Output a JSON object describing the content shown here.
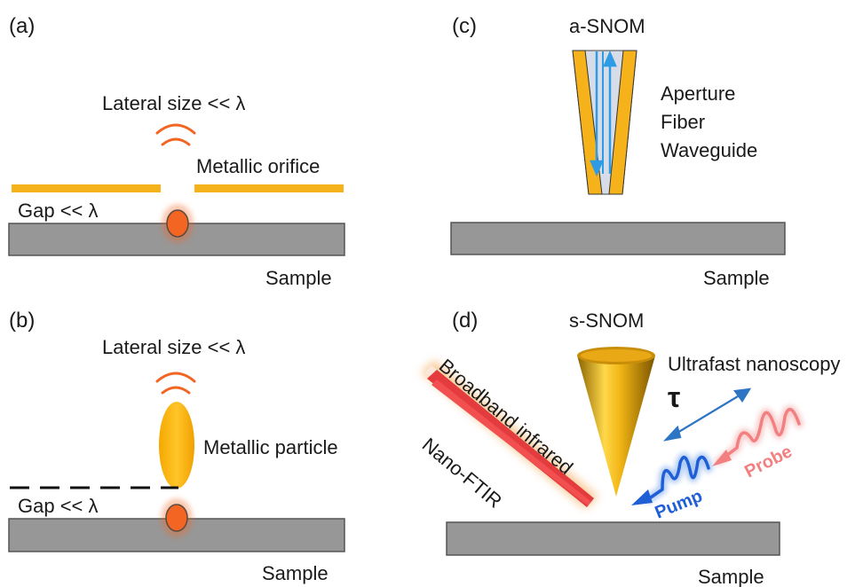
{
  "panels": {
    "a": {
      "label": "(a)",
      "lateral": "Lateral size << λ",
      "orifice": "Metallic orifice",
      "gap": "Gap << λ",
      "sample": "Sample"
    },
    "b": {
      "label": "(b)",
      "lateral": "Lateral size << λ",
      "particle": "Metallic particle",
      "gap": "Gap << λ",
      "sample": "Sample"
    },
    "c": {
      "label": "(c)",
      "title": "a-SNOM",
      "desc_lines": [
        "Aperture",
        "Fiber",
        "Waveguide"
      ],
      "sample": "Sample"
    },
    "d": {
      "label": "(d)",
      "title": "s-SNOM",
      "ultrafast": "Ultrafast nanoscopy",
      "tau": "τ",
      "broadband": "Broadband infrared",
      "nanoftir": "Nano-FTIR",
      "pump": "Pump",
      "probe": "Probe",
      "sample": "Sample"
    }
  },
  "colors": {
    "metal": "#F5B21A",
    "sample_fill": "#979797",
    "sample_stroke": "#555555",
    "emitter": "#F26522",
    "waves": "#F26522",
    "fiber_core": "#D6DDE8",
    "fiber_arrow": "#2E9BE5",
    "tau_arrow": "#2E75C4",
    "pump": "#1F5FD6",
    "probe": "#F28080",
    "beam": "#E0282C"
  }
}
